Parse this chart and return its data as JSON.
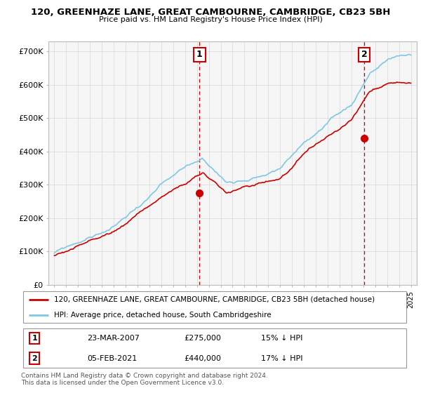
{
  "title_line1": "120, GREENHAZE LANE, GREAT CAMBOURNE, CAMBRIDGE, CB23 5BH",
  "title_line2": "Price paid vs. HM Land Registry's House Price Index (HPI)",
  "ylabel_ticks": [
    "£0",
    "£100K",
    "£200K",
    "£300K",
    "£400K",
    "£500K",
    "£600K",
    "£700K"
  ],
  "ylim": [
    0,
    730000
  ],
  "ytick_values": [
    0,
    100000,
    200000,
    300000,
    400000,
    500000,
    600000,
    700000
  ],
  "hpi_color": "#7ec8e3",
  "property_color": "#cc0000",
  "dashed_color": "#cc0000",
  "background_color": "#ffffff",
  "chart_bg": "#f8f8f8",
  "legend_entries": [
    "120, GREENHAZE LANE, GREAT CAMBOURNE, CAMBRIDGE, CB23 5BH (detached house)",
    "HPI: Average price, detached house, South Cambridgeshire"
  ],
  "annotation1": {
    "label": "1",
    "date": "23-MAR-2007",
    "price": "£275,000",
    "note": "15% ↓ HPI"
  },
  "annotation2": {
    "label": "2",
    "date": "05-FEB-2021",
    "price": "£440,000",
    "note": "17% ↓ HPI"
  },
  "footer": "Contains HM Land Registry data © Crown copyright and database right 2024.\nThis data is licensed under the Open Government Licence v3.0.",
  "sale1_year": 2007.22,
  "sale1_price": 275000,
  "sale2_year": 2021.08,
  "sale2_price": 440000
}
